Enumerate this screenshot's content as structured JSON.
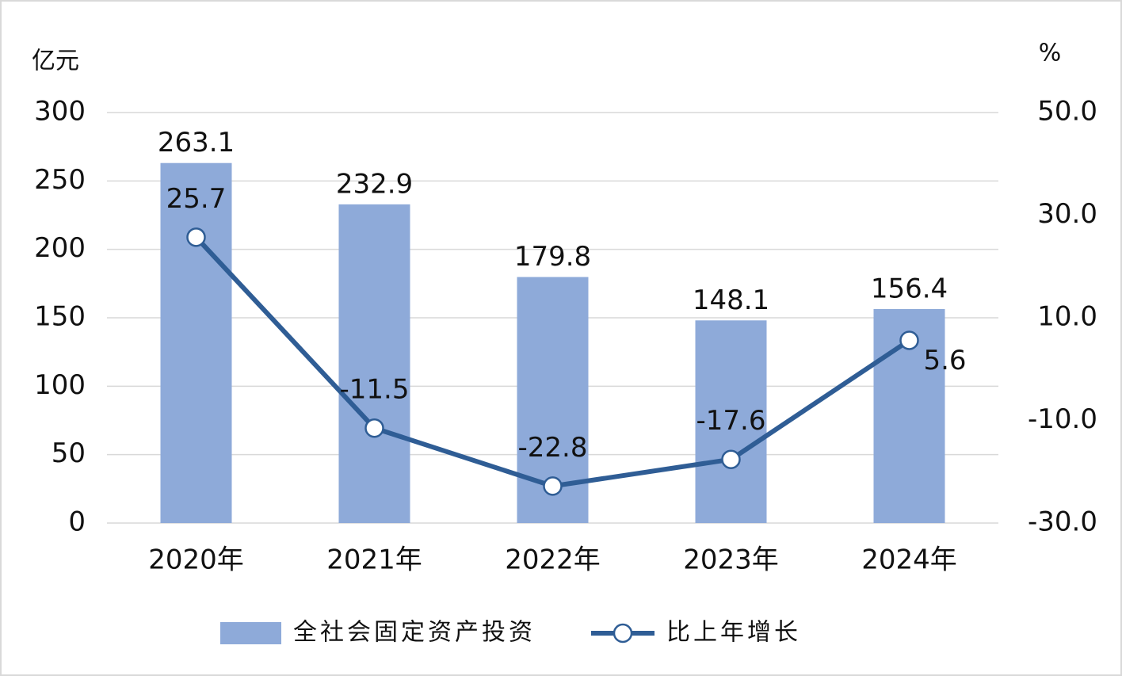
{
  "chart_data": {
    "type": "bar",
    "y_axis_label": "亿元",
    "y2_axis_label": "%",
    "categories": [
      "2020年",
      "2021年",
      "2022年",
      "2023年",
      "2024年"
    ],
    "series": [
      {
        "name": "全社会固定资产投资",
        "color": "#8eaad9",
        "type": "bar",
        "values": [
          263.1,
          232.9,
          179.8,
          148.1,
          156.4
        ]
      },
      {
        "name": "比上年增长",
        "color": "#2f5d95",
        "type": "line",
        "axis": "y2",
        "values": [
          25.7,
          -11.5,
          -22.8,
          -17.6,
          5.6
        ]
      }
    ],
    "ylim": [
      0,
      300
    ],
    "yticks": [
      0,
      50,
      100,
      150,
      200,
      250,
      300
    ],
    "y2lim": [
      -30,
      50
    ],
    "y2ticks": [
      {
        "value": -30,
        "label": "-30.0"
      },
      {
        "value": -10,
        "label": "-10.0"
      },
      {
        "value": 10,
        "label": "10.0"
      },
      {
        "value": 30,
        "label": "30.0"
      },
      {
        "value": 50,
        "label": "50.0"
      }
    ],
    "grid": true,
    "legend": "bottom"
  }
}
